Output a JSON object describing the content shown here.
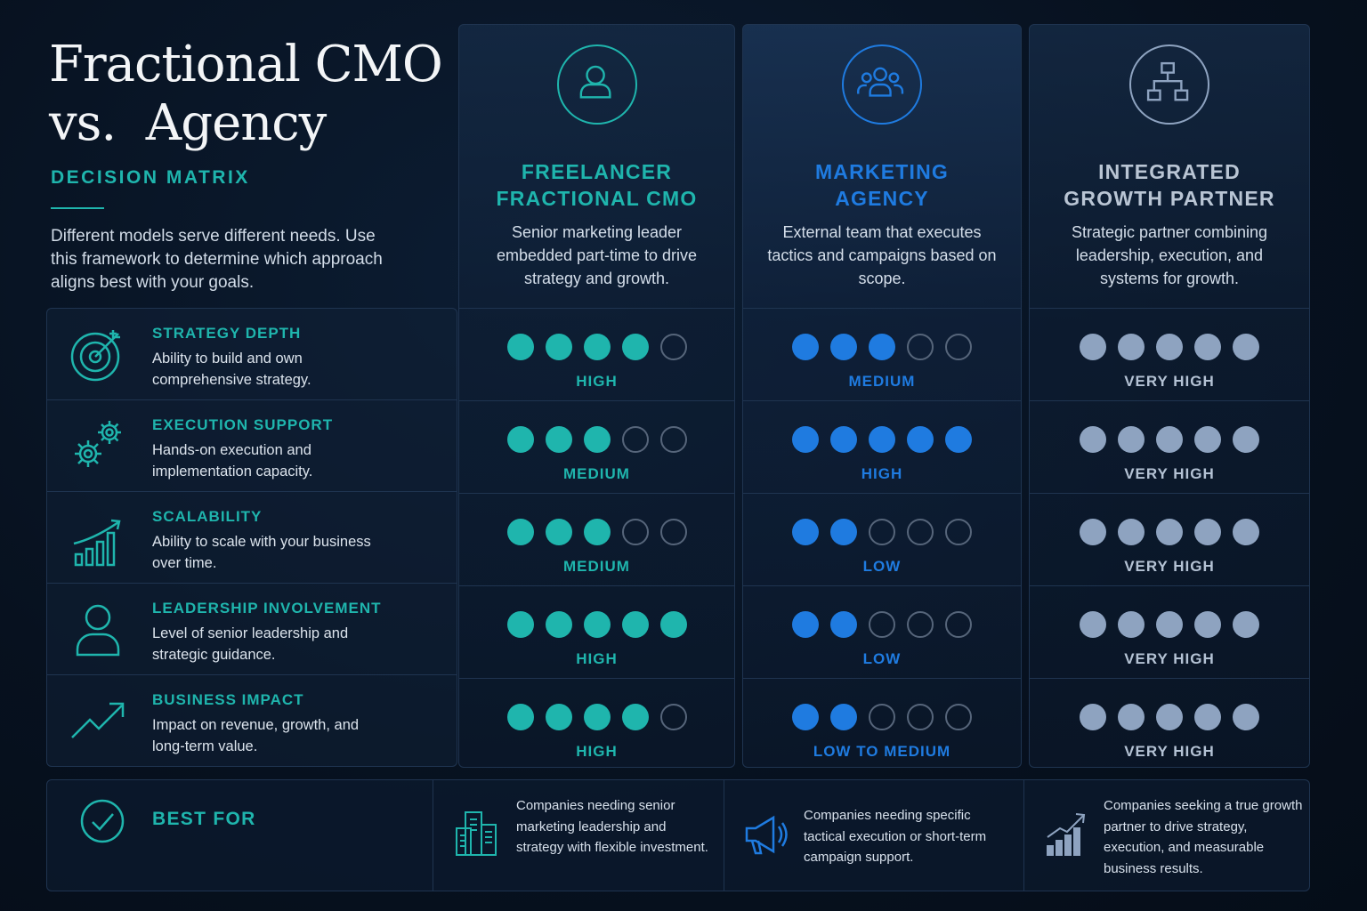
{
  "header": {
    "title_line1": "Fractional CMO",
    "title_line2": "vs.  Agency",
    "subtitle": "DECISION MATRIX",
    "intro": "Different models serve different needs. Use this framework to determine which approach aligns best with your goals."
  },
  "criteria": [
    {
      "title": "STRATEGY DEPTH",
      "desc": "Ability to build and own comprehensive strategy.",
      "icon": "target-icon"
    },
    {
      "title": "EXECUTION SUPPORT",
      "desc": "Hands-on execution and implementation capacity.",
      "icon": "gears-icon"
    },
    {
      "title": "SCALABILITY",
      "desc": "Ability to scale with your business over time.",
      "icon": "growth-bars-icon"
    },
    {
      "title": "LEADERSHIP INVOLVEMENT",
      "desc": "Level of senior leadership and strategic guidance.",
      "icon": "person-icon"
    },
    {
      "title": "BUSINESS IMPACT",
      "desc": "Impact on revenue, growth, and long-term value.",
      "icon": "trend-up-icon"
    }
  ],
  "columns": [
    {
      "title_line1": "FREELANCER",
      "title_line2": "FRACTIONAL CMO",
      "desc": "Senior marketing leader embedded part-time to drive strategy and growth.",
      "icon": "single-person-icon",
      "color": "#1fb5ad",
      "ratings": [
        {
          "score": 4,
          "label": "HIGH"
        },
        {
          "score": 3,
          "label": "MEDIUM"
        },
        {
          "score": 3,
          "label": "MEDIUM"
        },
        {
          "score": 5,
          "label": "HIGH"
        },
        {
          "score": 4,
          "label": "HIGH"
        }
      ]
    },
    {
      "title_line1": "MARKETING",
      "title_line2": "AGENCY",
      "desc": "External team that executes tactics and campaigns based on scope.",
      "icon": "team-icon",
      "color": "#1f7be0",
      "ratings": [
        {
          "score": 3,
          "label": "MEDIUM"
        },
        {
          "score": 5,
          "label": "HIGH"
        },
        {
          "score": 2,
          "label": "LOW"
        },
        {
          "score": 2,
          "label": "LOW"
        },
        {
          "score": 2,
          "label": "LOW TO MEDIUM"
        }
      ]
    },
    {
      "title_line1": "INTEGRATED",
      "title_line2": "GROWTH PARTNER",
      "desc": "Strategic partner combining leadership, execution, and systems for growth.",
      "icon": "org-chart-icon",
      "color": "#8ea3c0",
      "ratings": [
        {
          "score": 5,
          "label": "VERY HIGH"
        },
        {
          "score": 5,
          "label": "VERY HIGH"
        },
        {
          "score": 5,
          "label": "VERY HIGH"
        },
        {
          "score": 5,
          "label": "VERY HIGH"
        },
        {
          "score": 5,
          "label": "VERY HIGH"
        }
      ]
    }
  ],
  "best_for": {
    "label": "BEST FOR",
    "items": [
      {
        "text": "Companies needing senior marketing leadership and strategy with flexible investment.",
        "icon": "buildings-icon"
      },
      {
        "text": "Companies needing specific tactical execution or short-term campaign support.",
        "icon": "megaphone-icon"
      },
      {
        "text": "Companies seeking a true growth partner to drive strategy, execution, and measurable business results.",
        "icon": "growth-chart-icon"
      }
    ]
  }
}
